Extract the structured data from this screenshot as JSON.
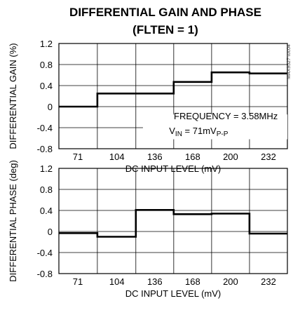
{
  "title_line1": "DIFFERENTIAL GAIN AND PHASE",
  "title_line2": "(FLTEN = 1)",
  "watermark": "MAX9527 toc04",
  "chart_data": [
    {
      "type": "line",
      "step": true,
      "ylabel": "DIFFERENTIAL GAIN (%)",
      "xlabel": "DC INPUT LEVEL (mV)",
      "ylim": [
        -0.8,
        1.2
      ],
      "yticks": [
        1.2,
        0.8,
        0.4,
        0,
        -0.4,
        -0.8
      ],
      "ytick_labels": [
        "1.2",
        "0.8",
        "0.4",
        "0",
        "-0.4",
        "-0.8"
      ],
      "xlim": [
        55,
        248
      ],
      "xticks": [
        71,
        104,
        136,
        168,
        200,
        232
      ],
      "xtick_labels": [
        "71",
        "104",
        "136",
        "168",
        "200",
        "232"
      ],
      "vgrid": [
        87.5,
        120,
        152,
        184,
        216
      ],
      "grid": true,
      "annotation_line1": "FREQUENCY = 3.58MHz",
      "annotation_line2": "V",
      "annotation_line2_sub": "IN",
      "annotation_line2_rest": " = 71mV",
      "annotation_line2_sub2": "P-P",
      "x": [
        55,
        87.5,
        87.5,
        152,
        152,
        184,
        184,
        216,
        216,
        248
      ],
      "y": [
        0,
        0,
        0.25,
        0.25,
        0.47,
        0.47,
        0.65,
        0.65,
        0.63,
        0.63
      ]
    },
    {
      "type": "line",
      "step": true,
      "ylabel": "DIFFERENTIAL PHASE (deg)",
      "xlabel": "DC INPUT LEVEL (mV)",
      "ylim": [
        -0.8,
        1.2
      ],
      "yticks": [
        1.2,
        0.8,
        0.4,
        0,
        -0.4,
        -0.8
      ],
      "ytick_labels": [
        "1.2",
        "0.8",
        "0.4",
        "0",
        "-0.4",
        "-0.8"
      ],
      "xlim": [
        55,
        248
      ],
      "xticks": [
        71,
        104,
        136,
        168,
        200,
        232
      ],
      "xtick_labels": [
        "71",
        "104",
        "136",
        "168",
        "200",
        "232"
      ],
      "vgrid": [
        87.5,
        120,
        152,
        184,
        216
      ],
      "grid": true,
      "x": [
        55,
        87.5,
        87.5,
        120,
        120,
        152,
        152,
        184,
        184,
        216,
        216,
        248
      ],
      "y": [
        -0.03,
        -0.03,
        -0.1,
        -0.1,
        0.41,
        0.41,
        0.33,
        0.33,
        0.34,
        0.34,
        -0.04,
        -0.04
      ]
    }
  ]
}
